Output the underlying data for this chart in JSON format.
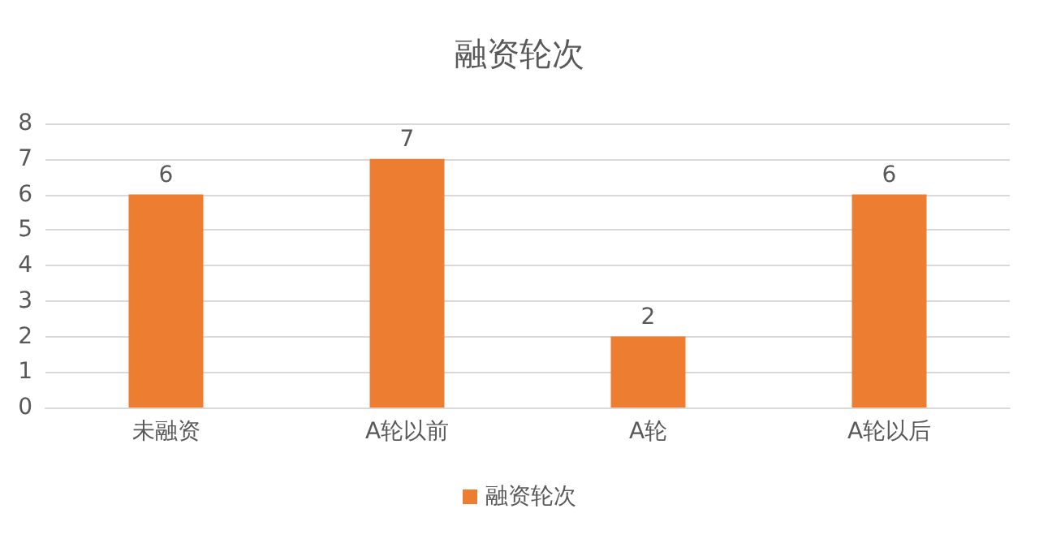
{
  "chart_data": {
    "type": "bar",
    "title": "融资轮次",
    "categories": [
      "未融资",
      "A轮以前",
      "A轮",
      "A轮以后"
    ],
    "series": [
      {
        "name": "融资轮次",
        "color": "#ed7d31",
        "values": [
          6,
          7,
          2,
          6
        ]
      }
    ],
    "ylim": [
      0,
      8
    ],
    "yticks": [
      0,
      1,
      2,
      3,
      4,
      5,
      6,
      7,
      8
    ],
    "grid": "y",
    "legend": "bottom",
    "data_labels": true
  }
}
